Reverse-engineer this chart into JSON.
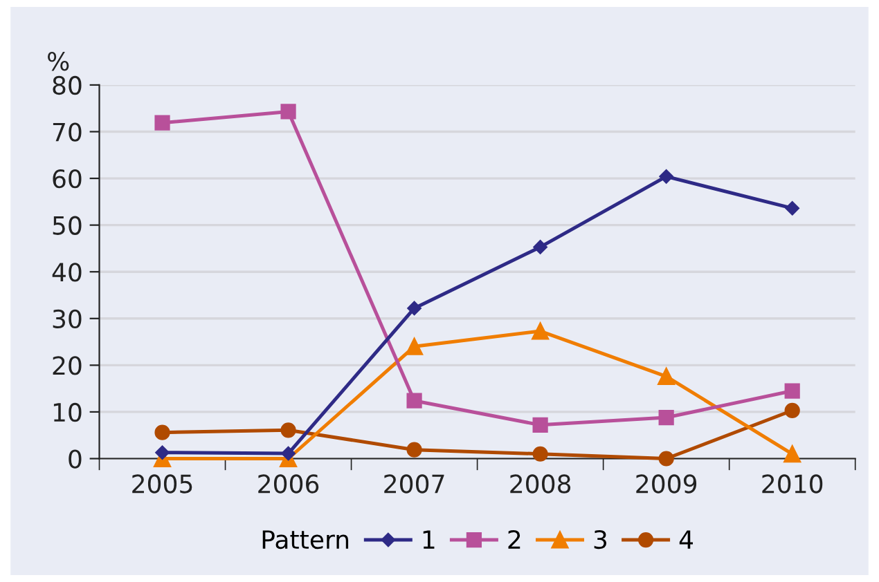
{
  "chart_data": {
    "type": "line",
    "ylabel": "%",
    "legend_title": "Pattern",
    "legend": "bottom",
    "grid": "y",
    "categories": [
      "2005",
      "2006",
      "2007",
      "2008",
      "2009",
      "2010"
    ],
    "ylim": [
      0,
      80
    ],
    "yticks": [
      0,
      10,
      20,
      30,
      40,
      50,
      60,
      70,
      80
    ],
    "series": [
      {
        "name": "1",
        "color": "#2e2a86",
        "marker": "diamond",
        "values": [
          1.3,
          1.1,
          32.2,
          45.3,
          60.4,
          53.6
        ]
      },
      {
        "name": "2",
        "color": "#b8509a",
        "marker": "square",
        "values": [
          71.9,
          74.3,
          12.4,
          7.2,
          8.8,
          14.5
        ]
      },
      {
        "name": "3",
        "color": "#f07d00",
        "marker": "triangle",
        "values": [
          0,
          0,
          24.0,
          27.3,
          17.6,
          1.0
        ]
      },
      {
        "name": "4",
        "color": "#b04a00",
        "marker": "circle",
        "values": [
          5.6,
          6.1,
          1.9,
          1.0,
          0,
          10.3
        ]
      }
    ]
  }
}
